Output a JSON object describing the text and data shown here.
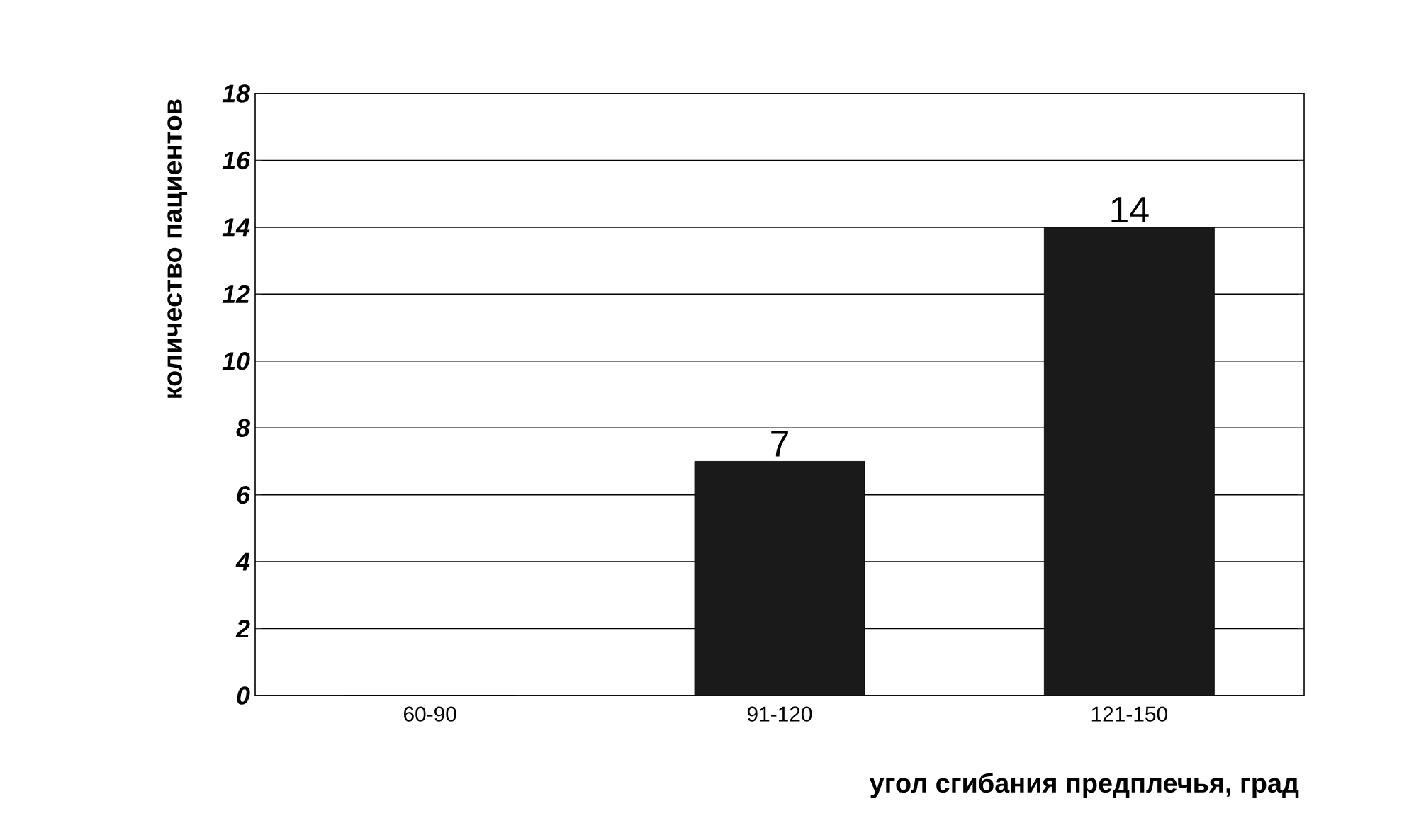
{
  "chart_data": {
    "type": "bar",
    "xlabel": "угол сгибания предплечья, град",
    "ylabel": "количество пациентов",
    "categories": [
      "60-90",
      "91-120",
      "121-150"
    ],
    "values": [
      0,
      7,
      14
    ],
    "value_labels": [
      null,
      "7",
      "14"
    ],
    "color": "#1a1a1a",
    "ylim": [
      0,
      18
    ],
    "yticks": [
      0,
      2,
      4,
      6,
      8,
      10,
      12,
      14,
      16,
      18
    ],
    "grid": "y"
  }
}
